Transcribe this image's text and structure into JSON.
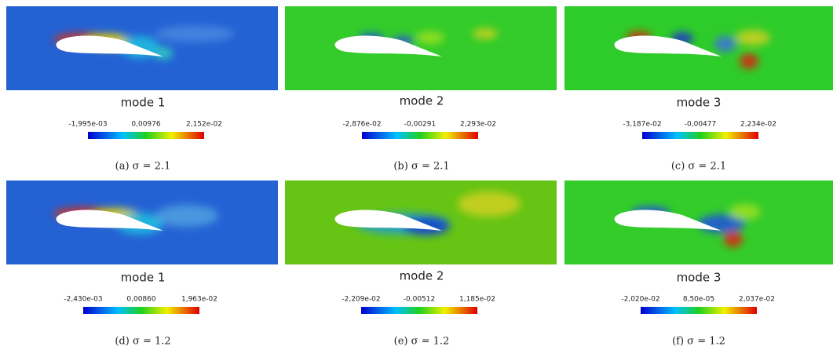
{
  "panels": [
    {
      "mode": "mode 1",
      "colorbar": {
        "min": "-1,995e-03",
        "mid": "0,00976",
        "max": "2,152e-02"
      },
      "caption": "(a) σ = 2.1"
    },
    {
      "mode": "mode 2",
      "colorbar": {
        "min": "-2,876e-02",
        "mid": "-0,00291",
        "max": "2,293e-02"
      },
      "caption": "(b) σ = 2.1"
    },
    {
      "mode": "mode 3",
      "colorbar": {
        "min": "-3,187e-02",
        "mid": "-0,00477",
        "max": "2,234e-02"
      },
      "caption": "(c) σ = 2.1"
    },
    {
      "mode": "mode 1",
      "colorbar": {
        "min": "-2,430e-03",
        "mid": "0,00860",
        "max": "1,963e-02"
      },
      "caption": "(d) σ = 1.2"
    },
    {
      "mode": "mode 2",
      "colorbar": {
        "min": "-2,209e-02",
        "mid": "-0,00512",
        "max": "1,185e-02"
      },
      "caption": "(e) σ = 1.2"
    },
    {
      "mode": "mode 3",
      "colorbar": {
        "min": "-2,020e-02",
        "mid": "8,50e-05",
        "max": "2,037e-02"
      },
      "caption": "(f) σ = 1.2"
    }
  ]
}
